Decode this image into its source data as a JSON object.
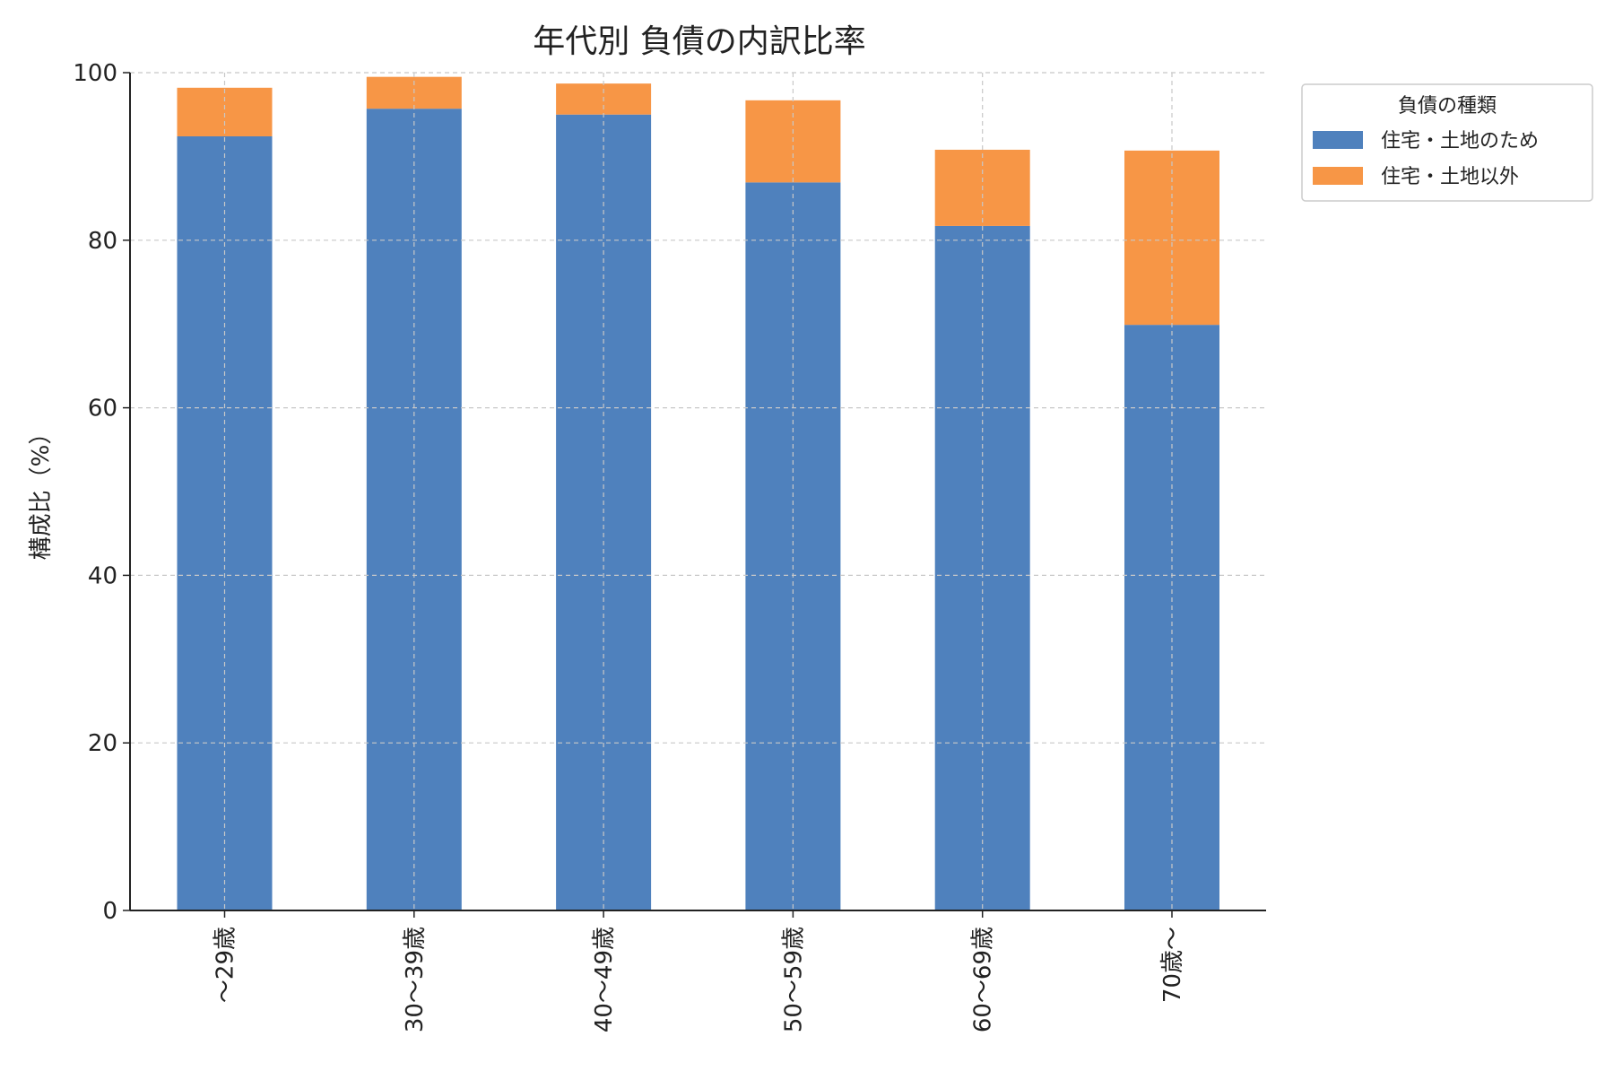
{
  "chart_data": {
    "type": "bar",
    "stacked": true,
    "title": "年代別 負債の内訳比率",
    "xlabel": "",
    "ylabel": "構成比（%）",
    "ylim": [
      0,
      100
    ],
    "yticks": [
      "0",
      "20",
      "40",
      "60",
      "80",
      "100"
    ],
    "categories": [
      "〜29歳",
      "30〜39歳",
      "40〜49歳",
      "50〜59歳",
      "60〜69歳",
      "70歳〜"
    ],
    "series": [
      {
        "name": "住宅・土地のため",
        "color": "#4f81bd",
        "values": [
          92.4,
          95.7,
          95.0,
          86.9,
          81.7,
          69.9
        ]
      },
      {
        "name": "住宅・土地以外",
        "color": "#f79646",
        "values": [
          5.8,
          3.8,
          3.7,
          9.8,
          9.1,
          20.8
        ]
      }
    ],
    "grid": true,
    "legend": {
      "title": "負債の種類",
      "placement": "outside-top-right"
    }
  }
}
